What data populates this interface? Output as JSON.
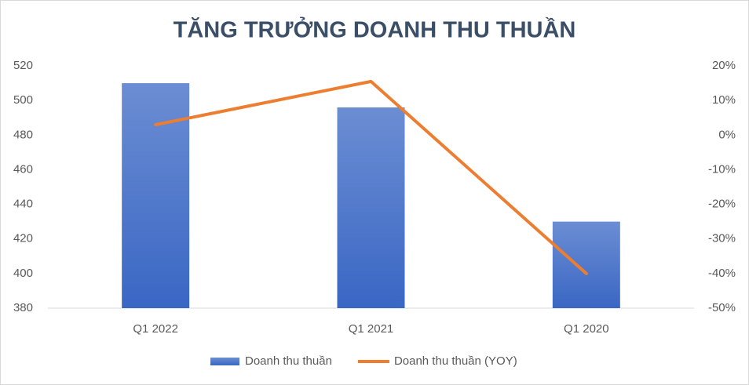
{
  "chart_data": {
    "type": "bar-line",
    "title": "TĂNG TRƯỞNG DOANH THU THUẦN",
    "categories": [
      "Q1 2022",
      "Q1 2021",
      "Q1 2020"
    ],
    "series": [
      {
        "name": "Doanh thu thuần",
        "type": "bar",
        "color": "#3a67c4",
        "values": [
          510,
          496,
          430
        ]
      },
      {
        "name": "Doanh thu thuần (YOY)",
        "type": "line",
        "color": "#ed7d31",
        "axis": "y2",
        "values": [
          3,
          15.5,
          -40
        ]
      }
    ],
    "ylim": [
      380,
      520
    ],
    "yticks": [
      380,
      400,
      420,
      440,
      460,
      480,
      500,
      520
    ],
    "y2lim": [
      -50,
      20
    ],
    "y2ticks": [
      {
        "value": -50,
        "label": "-50%"
      },
      {
        "value": -40,
        "label": "-40%"
      },
      {
        "value": -30,
        "label": "-30%"
      },
      {
        "value": -20,
        "label": "-20%"
      },
      {
        "value": -10,
        "label": "-10%"
      },
      {
        "value": 0,
        "label": "0%"
      },
      {
        "value": 10,
        "label": "10%"
      },
      {
        "value": 20,
        "label": "20%"
      }
    ],
    "grid": false,
    "legend": "bottom"
  }
}
